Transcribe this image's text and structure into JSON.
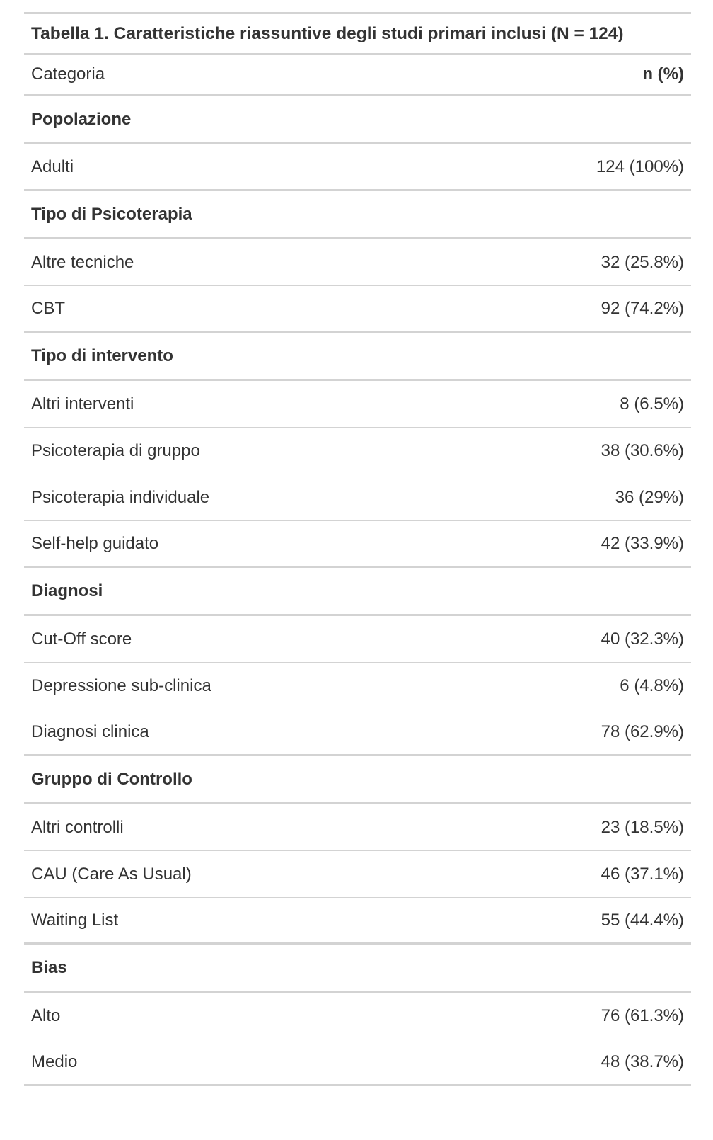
{
  "table": {
    "title": "Tabella 1. Caratteristiche riassuntive degli studi primari inclusi (N = 124)",
    "header": {
      "category": "Categoria",
      "value": "n (%)"
    },
    "groups": [
      {
        "label": "Popolazione",
        "rows": [
          {
            "category": "Adulti",
            "value": "124 (100%)"
          }
        ]
      },
      {
        "label": "Tipo di Psicoterapia",
        "rows": [
          {
            "category": "Altre tecniche",
            "value": "32 (25.8%)"
          },
          {
            "category": "CBT",
            "value": "92 (74.2%)"
          }
        ]
      },
      {
        "label": "Tipo di intervento",
        "rows": [
          {
            "category": "Altri interventi",
            "value": "8 (6.5%)"
          },
          {
            "category": "Psicoterapia di gruppo",
            "value": "38 (30.6%)"
          },
          {
            "category": "Psicoterapia individuale",
            "value": "36 (29%)"
          },
          {
            "category": "Self-help guidato",
            "value": "42 (33.9%)"
          }
        ]
      },
      {
        "label": "Diagnosi",
        "rows": [
          {
            "category": "Cut-Off score",
            "value": "40 (32.3%)"
          },
          {
            "category": "Depressione sub-clinica",
            "value": "6 (4.8%)"
          },
          {
            "category": "Diagnosi clinica",
            "value": "78 (62.9%)"
          }
        ]
      },
      {
        "label": "Gruppo di Controllo",
        "rows": [
          {
            "category": "Altri controlli",
            "value": "23 (18.5%)"
          },
          {
            "category": "CAU (Care As Usual)",
            "value": "46 (37.1%)"
          },
          {
            "category": "Waiting List",
            "value": "55 (44.4%)"
          }
        ]
      },
      {
        "label": "Bias",
        "rows": [
          {
            "category": "Alto",
            "value": "76 (61.3%)"
          },
          {
            "category": "Medio",
            "value": "48 (38.7%)"
          }
        ]
      }
    ]
  }
}
